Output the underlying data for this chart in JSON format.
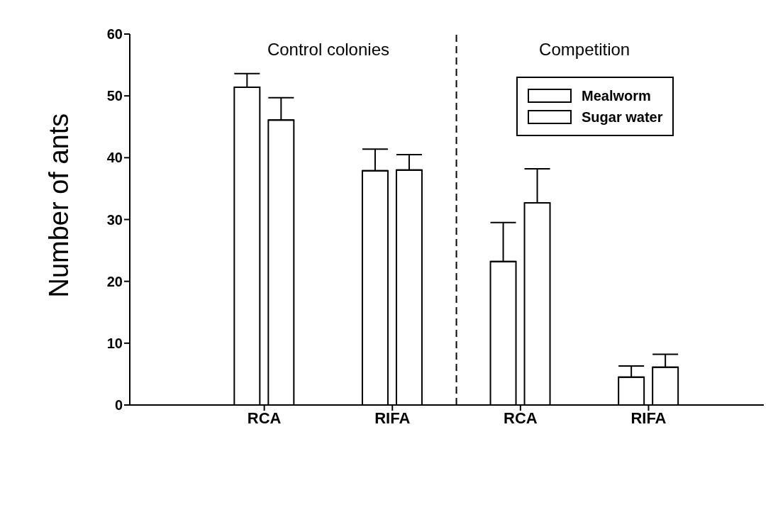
{
  "chart_data": {
    "type": "bar",
    "ylabel": "Number of ants",
    "categories": [
      "RCA",
      "RIFA",
      "RCA",
      "RIFA"
    ],
    "series": [
      {
        "name": "Mealworm",
        "color": "#ffffff",
        "values": [
          51.4,
          37.9,
          23.2,
          4.5
        ],
        "errors": [
          [
            51.4,
            53.6
          ],
          [
            37.9,
            41.4
          ],
          [
            23.2,
            29.5
          ],
          [
            4.5,
            6.3
          ]
        ]
      },
      {
        "name": "Sugar water",
        "color": "#ffffff",
        "values": [
          46.1,
          38.0,
          32.7,
          6.1
        ],
        "errors": [
          [
            46.1,
            49.7
          ],
          [
            38.0,
            40.5
          ],
          [
            32.7,
            38.2
          ],
          [
            6.1,
            8.2
          ]
        ]
      }
    ],
    "ylim": [
      0,
      60
    ],
    "yticks": [
      0,
      10,
      20,
      30,
      40,
      50,
      60
    ],
    "grid": false,
    "legend": "top right",
    "annotations": [
      "Control colonies",
      "Competition"
    ]
  }
}
